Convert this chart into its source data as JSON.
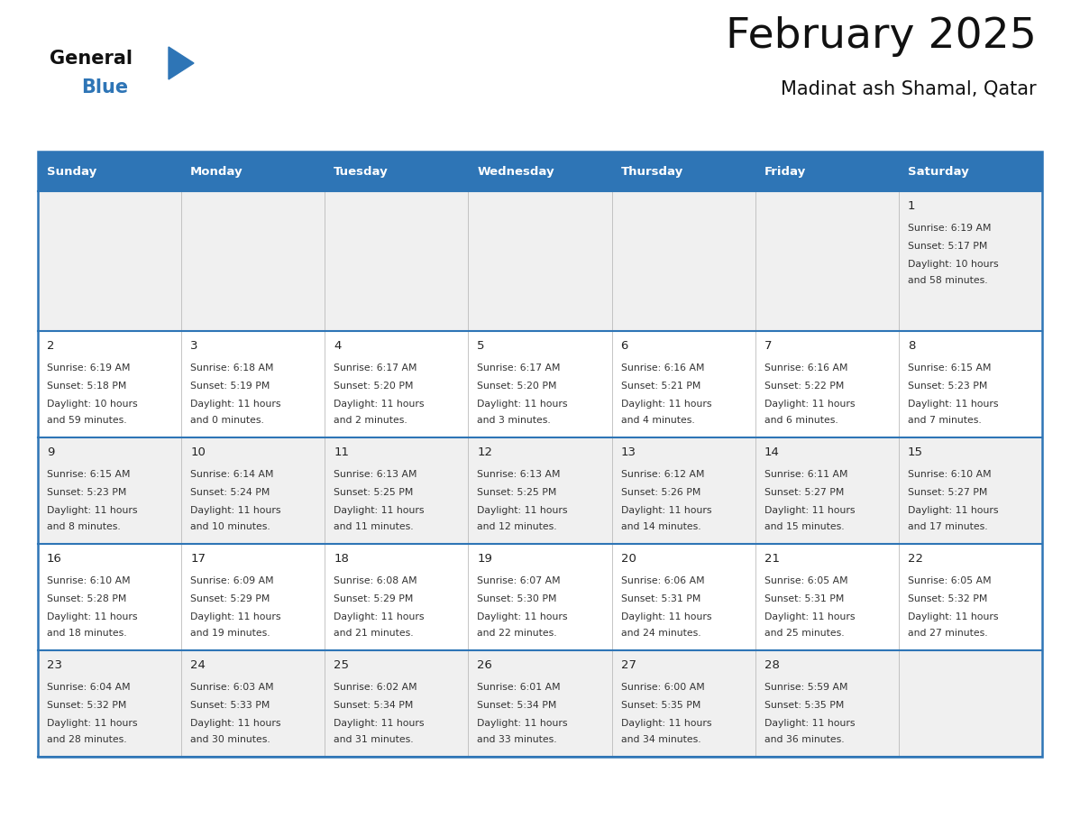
{
  "title": "February 2025",
  "subtitle": "Madinat ash Shamal, Qatar",
  "header_bg": "#2E75B6",
  "header_text_color": "#FFFFFF",
  "cell_bg_row0": "#F0F0F0",
  "cell_bg_row1": "#FFFFFF",
  "cell_bg_row2": "#F0F0F0",
  "cell_bg_row3": "#FFFFFF",
  "cell_bg_row4": "#F0F0F0",
  "divider_color": "#2E75B6",
  "grid_line_color": "#BBBBBB",
  "days_of_week": [
    "Sunday",
    "Monday",
    "Tuesday",
    "Wednesday",
    "Thursday",
    "Friday",
    "Saturday"
  ],
  "calendar": [
    [
      null,
      null,
      null,
      null,
      null,
      null,
      {
        "day": "1",
        "sunrise": "6:19 AM",
        "sunset": "5:17 PM",
        "daylight_line1": "10 hours",
        "daylight_line2": "and 58 minutes."
      }
    ],
    [
      {
        "day": "2",
        "sunrise": "6:19 AM",
        "sunset": "5:18 PM",
        "daylight_line1": "10 hours",
        "daylight_line2": "and 59 minutes."
      },
      {
        "day": "3",
        "sunrise": "6:18 AM",
        "sunset": "5:19 PM",
        "daylight_line1": "11 hours",
        "daylight_line2": "and 0 minutes."
      },
      {
        "day": "4",
        "sunrise": "6:17 AM",
        "sunset": "5:20 PM",
        "daylight_line1": "11 hours",
        "daylight_line2": "and 2 minutes."
      },
      {
        "day": "5",
        "sunrise": "6:17 AM",
        "sunset": "5:20 PM",
        "daylight_line1": "11 hours",
        "daylight_line2": "and 3 minutes."
      },
      {
        "day": "6",
        "sunrise": "6:16 AM",
        "sunset": "5:21 PM",
        "daylight_line1": "11 hours",
        "daylight_line2": "and 4 minutes."
      },
      {
        "day": "7",
        "sunrise": "6:16 AM",
        "sunset": "5:22 PM",
        "daylight_line1": "11 hours",
        "daylight_line2": "and 6 minutes."
      },
      {
        "day": "8",
        "sunrise": "6:15 AM",
        "sunset": "5:23 PM",
        "daylight_line1": "11 hours",
        "daylight_line2": "and 7 minutes."
      }
    ],
    [
      {
        "day": "9",
        "sunrise": "6:15 AM",
        "sunset": "5:23 PM",
        "daylight_line1": "11 hours",
        "daylight_line2": "and 8 minutes."
      },
      {
        "day": "10",
        "sunrise": "6:14 AM",
        "sunset": "5:24 PM",
        "daylight_line1": "11 hours",
        "daylight_line2": "and 10 minutes."
      },
      {
        "day": "11",
        "sunrise": "6:13 AM",
        "sunset": "5:25 PM",
        "daylight_line1": "11 hours",
        "daylight_line2": "and 11 minutes."
      },
      {
        "day": "12",
        "sunrise": "6:13 AM",
        "sunset": "5:25 PM",
        "daylight_line1": "11 hours",
        "daylight_line2": "and 12 minutes."
      },
      {
        "day": "13",
        "sunrise": "6:12 AM",
        "sunset": "5:26 PM",
        "daylight_line1": "11 hours",
        "daylight_line2": "and 14 minutes."
      },
      {
        "day": "14",
        "sunrise": "6:11 AM",
        "sunset": "5:27 PM",
        "daylight_line1": "11 hours",
        "daylight_line2": "and 15 minutes."
      },
      {
        "day": "15",
        "sunrise": "6:10 AM",
        "sunset": "5:27 PM",
        "daylight_line1": "11 hours",
        "daylight_line2": "and 17 minutes."
      }
    ],
    [
      {
        "day": "16",
        "sunrise": "6:10 AM",
        "sunset": "5:28 PM",
        "daylight_line1": "11 hours",
        "daylight_line2": "and 18 minutes."
      },
      {
        "day": "17",
        "sunrise": "6:09 AM",
        "sunset": "5:29 PM",
        "daylight_line1": "11 hours",
        "daylight_line2": "and 19 minutes."
      },
      {
        "day": "18",
        "sunrise": "6:08 AM",
        "sunset": "5:29 PM",
        "daylight_line1": "11 hours",
        "daylight_line2": "and 21 minutes."
      },
      {
        "day": "19",
        "sunrise": "6:07 AM",
        "sunset": "5:30 PM",
        "daylight_line1": "11 hours",
        "daylight_line2": "and 22 minutes."
      },
      {
        "day": "20",
        "sunrise": "6:06 AM",
        "sunset": "5:31 PM",
        "daylight_line1": "11 hours",
        "daylight_line2": "and 24 minutes."
      },
      {
        "day": "21",
        "sunrise": "6:05 AM",
        "sunset": "5:31 PM",
        "daylight_line1": "11 hours",
        "daylight_line2": "and 25 minutes."
      },
      {
        "day": "22",
        "sunrise": "6:05 AM",
        "sunset": "5:32 PM",
        "daylight_line1": "11 hours",
        "daylight_line2": "and 27 minutes."
      }
    ],
    [
      {
        "day": "23",
        "sunrise": "6:04 AM",
        "sunset": "5:32 PM",
        "daylight_line1": "11 hours",
        "daylight_line2": "and 28 minutes."
      },
      {
        "day": "24",
        "sunrise": "6:03 AM",
        "sunset": "5:33 PM",
        "daylight_line1": "11 hours",
        "daylight_line2": "and 30 minutes."
      },
      {
        "day": "25",
        "sunrise": "6:02 AM",
        "sunset": "5:34 PM",
        "daylight_line1": "11 hours",
        "daylight_line2": "and 31 minutes."
      },
      {
        "day": "26",
        "sunrise": "6:01 AM",
        "sunset": "5:34 PM",
        "daylight_line1": "11 hours",
        "daylight_line2": "and 33 minutes."
      },
      {
        "day": "27",
        "sunrise": "6:00 AM",
        "sunset": "5:35 PM",
        "daylight_line1": "11 hours",
        "daylight_line2": "and 34 minutes."
      },
      {
        "day": "28",
        "sunrise": "5:59 AM",
        "sunset": "5:35 PM",
        "daylight_line1": "11 hours",
        "daylight_line2": "and 36 minutes."
      },
      null
    ]
  ],
  "logo_general_color": "#111111",
  "logo_blue_color": "#2E75B6",
  "logo_triangle_color": "#2E75B6"
}
